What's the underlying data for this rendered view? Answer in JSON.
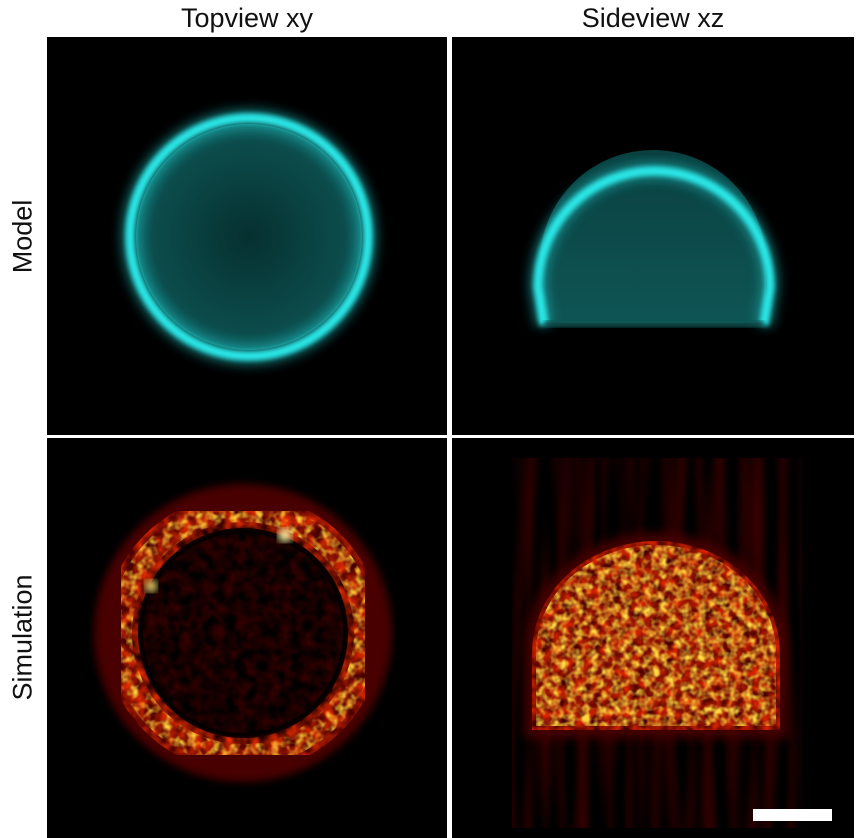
{
  "figure": {
    "columns": [
      {
        "label": "Topview xy"
      },
      {
        "label": "Sideview xz"
      }
    ],
    "rows": [
      {
        "label": "Model"
      },
      {
        "label": "Simulation"
      }
    ],
    "colors": {
      "model_ring": "#22e0e0",
      "model_fill": "#0d4a4a",
      "sim_outer": "#8a0000",
      "sim_mid": "#ff3a00",
      "sim_hot": "#fff36a",
      "background": "#000000",
      "scalebar": "#ffffff"
    }
  }
}
